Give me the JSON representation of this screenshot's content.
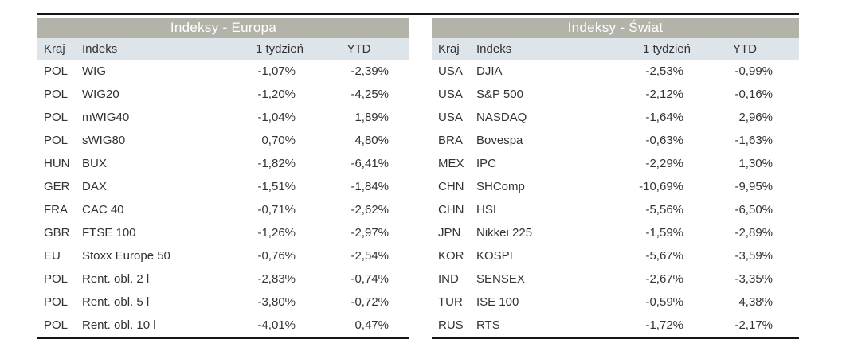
{
  "colors": {
    "title_band": "#b4b3aa",
    "header_band": "#dde4ea",
    "rule": "#141414",
    "text": "#333333",
    "title_text": "#ffffff"
  },
  "tables": [
    {
      "title": "Indeksy - Europa",
      "columns": {
        "kraj": "Kraj",
        "indeks": "Indeks",
        "week": "1 tydzień",
        "ytd": "YTD"
      },
      "rows": [
        {
          "kraj": "POL",
          "indeks": "WIG",
          "week": "-1,07%",
          "ytd": "-2,39%"
        },
        {
          "kraj": "POL",
          "indeks": "WIG20",
          "week": "-1,20%",
          "ytd": "-4,25%"
        },
        {
          "kraj": "POL",
          "indeks": "mWIG40",
          "week": "-1,04%",
          "ytd": "1,89%"
        },
        {
          "kraj": "POL",
          "indeks": "sWIG80",
          "week": "0,70%",
          "ytd": "4,80%"
        },
        {
          "kraj": "HUN",
          "indeks": "BUX",
          "week": "-1,82%",
          "ytd": "-6,41%"
        },
        {
          "kraj": "GER",
          "indeks": "DAX",
          "week": "-1,51%",
          "ytd": "-1,84%"
        },
        {
          "kraj": "FRA",
          "indeks": "CAC 40",
          "week": "-0,71%",
          "ytd": "-2,62%"
        },
        {
          "kraj": "GBR",
          "indeks": "FTSE 100",
          "week": "-1,26%",
          "ytd": "-2,97%"
        },
        {
          "kraj": "EU",
          "indeks": "Stoxx Europe 50",
          "week": "-0,76%",
          "ytd": "-2,54%"
        },
        {
          "kraj": "POL",
          "indeks": "Rent. obl. 2 l",
          "week": "-2,83%",
          "ytd": "-0,74%"
        },
        {
          "kraj": "POL",
          "indeks": "Rent. obl. 5 l",
          "week": "-3,80%",
          "ytd": "-0,72%"
        },
        {
          "kraj": "POL",
          "indeks": "Rent. obl. 10 l",
          "week": "-4,01%",
          "ytd": "0,47%"
        }
      ]
    },
    {
      "title": "Indeksy - Świat",
      "columns": {
        "kraj": "Kraj",
        "indeks": "Indeks",
        "week": "1 tydzień",
        "ytd": "YTD"
      },
      "rows": [
        {
          "kraj": "USA",
          "indeks": "DJIA",
          "week": "-2,53%",
          "ytd": "-0,99%"
        },
        {
          "kraj": "USA",
          "indeks": "S&P 500",
          "week": "-2,12%",
          "ytd": "-0,16%"
        },
        {
          "kraj": "USA",
          "indeks": "NASDAQ",
          "week": "-1,64%",
          "ytd": "2,96%"
        },
        {
          "kraj": "BRA",
          "indeks": "Bovespa",
          "week": "-0,63%",
          "ytd": "-1,63%"
        },
        {
          "kraj": "MEX",
          "indeks": "IPC",
          "week": "-2,29%",
          "ytd": "1,30%"
        },
        {
          "kraj": "CHN",
          "indeks": "SHComp",
          "week": "-10,69%",
          "ytd": "-9,95%"
        },
        {
          "kraj": "CHN",
          "indeks": "HSI",
          "week": "-5,56%",
          "ytd": "-6,50%"
        },
        {
          "kraj": "JPN",
          "indeks": "Nikkei 225",
          "week": "-1,59%",
          "ytd": "-2,89%"
        },
        {
          "kraj": "KOR",
          "indeks": "KOSPI",
          "week": "-5,67%",
          "ytd": "-3,59%"
        },
        {
          "kraj": "IND",
          "indeks": "SENSEX",
          "week": "-2,67%",
          "ytd": "-3,35%"
        },
        {
          "kraj": "TUR",
          "indeks": "ISE 100",
          "week": "-0,59%",
          "ytd": "4,38%"
        },
        {
          "kraj": "RUS",
          "indeks": "RTS",
          "week": "-1,72%",
          "ytd": "-2,17%"
        }
      ]
    }
  ]
}
